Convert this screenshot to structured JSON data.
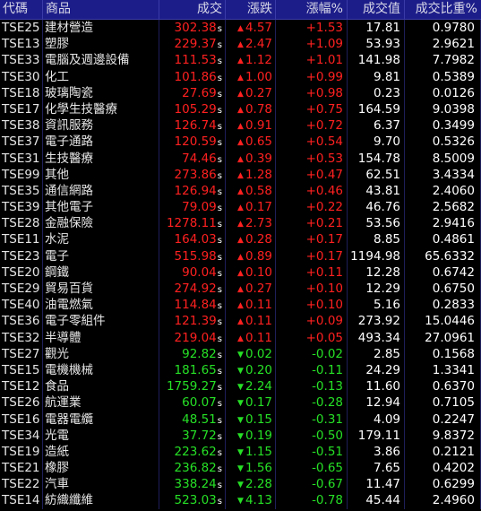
{
  "header": {
    "code": "代碼",
    "name": "商品",
    "price": "成交",
    "change": "漲跌",
    "change_pct": "漲幅%",
    "volume": "成交值",
    "share": "成交比重%"
  },
  "price_suffix": "s",
  "colors": {
    "up": "#ff2020",
    "down": "#26e026",
    "header_bg": "#1d1d8a"
  },
  "rows": [
    {
      "code": "TSE25",
      "name": "建材營造",
      "price": "302.38",
      "dir": "up",
      "change": "4.57",
      "pct": "+1.53",
      "volume": "17.81",
      "share": "0.9780"
    },
    {
      "code": "TSE13",
      "name": "塑膠",
      "price": "229.37",
      "dir": "up",
      "change": "2.47",
      "pct": "+1.09",
      "volume": "53.93",
      "share": "2.9621"
    },
    {
      "code": "TSE33",
      "name": "電腦及週邊設備",
      "price": "111.53",
      "dir": "up",
      "change": "1.12",
      "pct": "+1.01",
      "volume": "141.98",
      "share": "7.7982"
    },
    {
      "code": "TSE30",
      "name": "化工",
      "price": "101.86",
      "dir": "up",
      "change": "1.00",
      "pct": "+0.99",
      "volume": "9.81",
      "share": "0.5389"
    },
    {
      "code": "TSE18",
      "name": "玻璃陶瓷",
      "price": "27.69",
      "dir": "up",
      "change": "0.27",
      "pct": "+0.98",
      "volume": "0.23",
      "share": "0.0126"
    },
    {
      "code": "TSE17",
      "name": "化學生技醫療",
      "price": "105.29",
      "dir": "up",
      "change": "0.78",
      "pct": "+0.75",
      "volume": "164.59",
      "share": "9.0398"
    },
    {
      "code": "TSE38",
      "name": "資訊服務",
      "price": "126.74",
      "dir": "up",
      "change": "0.91",
      "pct": "+0.72",
      "volume": "6.37",
      "share": "0.3499"
    },
    {
      "code": "TSE37",
      "name": "電子通路",
      "price": "120.59",
      "dir": "up",
      "change": "0.65",
      "pct": "+0.54",
      "volume": "9.70",
      "share": "0.5326"
    },
    {
      "code": "TSE31",
      "name": "生技醫療",
      "price": "74.46",
      "dir": "up",
      "change": "0.39",
      "pct": "+0.53",
      "volume": "154.78",
      "share": "8.5009"
    },
    {
      "code": "TSE99",
      "name": "其他",
      "price": "273.86",
      "dir": "up",
      "change": "1.28",
      "pct": "+0.47",
      "volume": "62.51",
      "share": "3.4334"
    },
    {
      "code": "TSE35",
      "name": "通信網路",
      "price": "126.94",
      "dir": "up",
      "change": "0.58",
      "pct": "+0.46",
      "volume": "43.81",
      "share": "2.4060"
    },
    {
      "code": "TSE39",
      "name": "其他電子",
      "price": "79.09",
      "dir": "up",
      "change": "0.17",
      "pct": "+0.22",
      "volume": "46.76",
      "share": "2.5682"
    },
    {
      "code": "TSE28",
      "name": "金融保險",
      "price": "1278.11",
      "dir": "up",
      "change": "2.73",
      "pct": "+0.21",
      "volume": "53.56",
      "share": "2.9416"
    },
    {
      "code": "TSE11",
      "name": "水泥",
      "price": "164.03",
      "dir": "up",
      "change": "0.28",
      "pct": "+0.17",
      "volume": "8.85",
      "share": "0.4861"
    },
    {
      "code": "TSE23",
      "name": "電子",
      "price": "515.98",
      "dir": "up",
      "change": "0.89",
      "pct": "+0.17",
      "volume": "1194.98",
      "share": "65.6332"
    },
    {
      "code": "TSE20",
      "name": "鋼鐵",
      "price": "90.04",
      "dir": "up",
      "change": "0.10",
      "pct": "+0.11",
      "volume": "12.28",
      "share": "0.6742"
    },
    {
      "code": "TSE29",
      "name": "貿易百貨",
      "price": "274.92",
      "dir": "up",
      "change": "0.27",
      "pct": "+0.10",
      "volume": "12.29",
      "share": "0.6750"
    },
    {
      "code": "TSE40",
      "name": "油電燃氣",
      "price": "114.84",
      "dir": "up",
      "change": "0.11",
      "pct": "+0.10",
      "volume": "5.16",
      "share": "0.2833"
    },
    {
      "code": "TSE36",
      "name": "電子零組件",
      "price": "121.39",
      "dir": "up",
      "change": "0.11",
      "pct": "+0.09",
      "volume": "273.92",
      "share": "15.0446"
    },
    {
      "code": "TSE32",
      "name": "半導體",
      "price": "219.04",
      "dir": "up",
      "change": "0.11",
      "pct": "+0.05",
      "volume": "493.34",
      "share": "27.0961"
    },
    {
      "code": "TSE27",
      "name": "觀光",
      "price": "92.82",
      "dir": "down",
      "change": "0.02",
      "pct": "-0.02",
      "volume": "2.85",
      "share": "0.1568"
    },
    {
      "code": "TSE15",
      "name": "電機機械",
      "price": "181.65",
      "dir": "down",
      "change": "0.20",
      "pct": "-0.11",
      "volume": "24.29",
      "share": "1.3341"
    },
    {
      "code": "TSE12",
      "name": "食品",
      "price": "1759.27",
      "dir": "down",
      "change": "2.24",
      "pct": "-0.13",
      "volume": "11.60",
      "share": "0.6370"
    },
    {
      "code": "TSE26",
      "name": "航運業",
      "price": "60.07",
      "dir": "down",
      "change": "0.17",
      "pct": "-0.28",
      "volume": "12.94",
      "share": "0.7105"
    },
    {
      "code": "TSE16",
      "name": "電器電纜",
      "price": "48.51",
      "dir": "down",
      "change": "0.15",
      "pct": "-0.31",
      "volume": "4.09",
      "share": "0.2247"
    },
    {
      "code": "TSE34",
      "name": "光電",
      "price": "37.72",
      "dir": "down",
      "change": "0.19",
      "pct": "-0.50",
      "volume": "179.11",
      "share": "9.8372"
    },
    {
      "code": "TSE19",
      "name": "造紙",
      "price": "223.62",
      "dir": "down",
      "change": "1.15",
      "pct": "-0.51",
      "volume": "3.86",
      "share": "0.2121"
    },
    {
      "code": "TSE21",
      "name": "橡膠",
      "price": "236.82",
      "dir": "down",
      "change": "1.56",
      "pct": "-0.65",
      "volume": "7.65",
      "share": "0.4202"
    },
    {
      "code": "TSE22",
      "name": "汽車",
      "price": "338.24",
      "dir": "down",
      "change": "2.28",
      "pct": "-0.67",
      "volume": "11.47",
      "share": "0.6299"
    },
    {
      "code": "TSE14",
      "name": "紡織纖維",
      "price": "523.03",
      "dir": "down",
      "change": "4.13",
      "pct": "-0.78",
      "volume": "45.44",
      "share": "2.4960"
    }
  ]
}
